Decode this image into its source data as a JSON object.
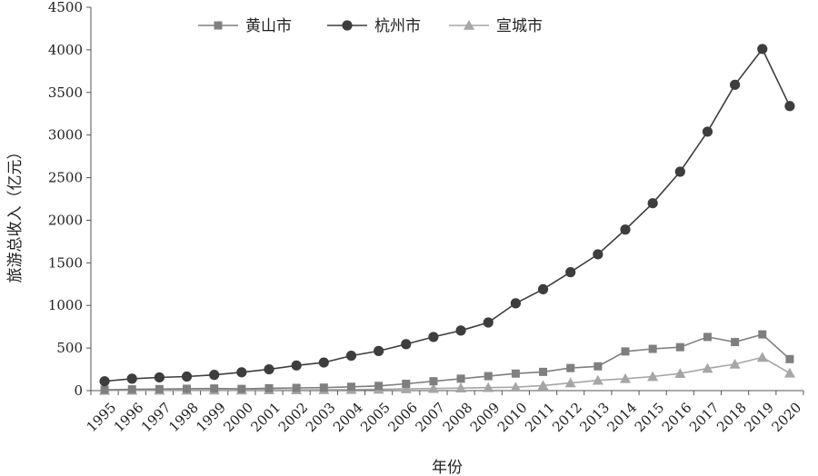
{
  "chart_data": {
    "type": "line",
    "title": "",
    "xlabel": "年份",
    "ylabel": "旅游总收入（亿元）",
    "ylim": [
      0,
      4500
    ],
    "yticks": [
      0,
      500,
      1000,
      1500,
      2000,
      2500,
      3000,
      3500,
      4000,
      4500
    ],
    "grid": false,
    "legend_position": "top-center",
    "categories": [
      "1995",
      "1996",
      "1997",
      "1998",
      "1999",
      "2000",
      "2001",
      "2002",
      "2003",
      "2004",
      "2005",
      "2006",
      "2007",
      "2008",
      "2009",
      "2010",
      "2011",
      "2012",
      "2013",
      "2014",
      "2015",
      "2016",
      "2017",
      "2018",
      "2019",
      "2020"
    ],
    "series": [
      {
        "name": "黄山市",
        "marker": "square",
        "color": "#7f7f7f",
        "values": [
          10,
          15,
          18,
          22,
          25,
          20,
          28,
          32,
          35,
          45,
          55,
          80,
          110,
          140,
          170,
          200,
          220,
          265,
          285,
          460,
          490,
          510,
          630,
          570,
          660,
          370
        ]
      },
      {
        "name": "杭州市",
        "marker": "circle",
        "color": "#3d3d3d",
        "values": [
          110,
          140,
          155,
          165,
          185,
          215,
          250,
          295,
          330,
          410,
          465,
          545,
          630,
          705,
          800,
          1025,
          1190,
          1390,
          1600,
          1890,
          2200,
          2570,
          3040,
          3590,
          4010,
          3340
        ]
      },
      {
        "name": "宣城市",
        "marker": "triangle",
        "color": "#a6a6a6",
        "values": [
          2,
          3,
          4,
          5,
          6,
          6,
          8,
          8,
          10,
          12,
          15,
          20,
          25,
          30,
          35,
          40,
          60,
          90,
          120,
          140,
          165,
          200,
          260,
          310,
          390,
          205
        ]
      }
    ]
  }
}
